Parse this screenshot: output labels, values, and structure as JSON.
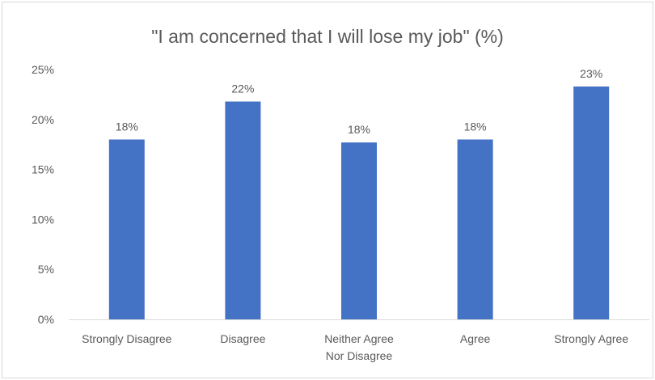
{
  "chart_data": {
    "type": "bar",
    "title": "\"I am concerned  that I will lose my job\" (%)",
    "categories": [
      [
        "Strongly Disagree"
      ],
      [
        "Disagree"
      ],
      [
        "Neither Agree",
        "Nor Disagree"
      ],
      [
        "Agree"
      ],
      [
        "Strongly Agree"
      ]
    ],
    "values": [
      18,
      21.8,
      17.7,
      18,
      23.3
    ],
    "data_labels": [
      "18%",
      "22%",
      "18%",
      "18%",
      "23%"
    ],
    "ylim": [
      0,
      25
    ],
    "yticks": [
      0,
      5,
      10,
      15,
      20,
      25
    ],
    "ytick_labels": [
      "0%",
      "5%",
      "10%",
      "15%",
      "20%",
      "25%"
    ],
    "xlabel": "",
    "ylabel": "",
    "grid": false,
    "legend": "none",
    "bar_color": "#4472C4",
    "axis_color": "#d9d9d9"
  }
}
